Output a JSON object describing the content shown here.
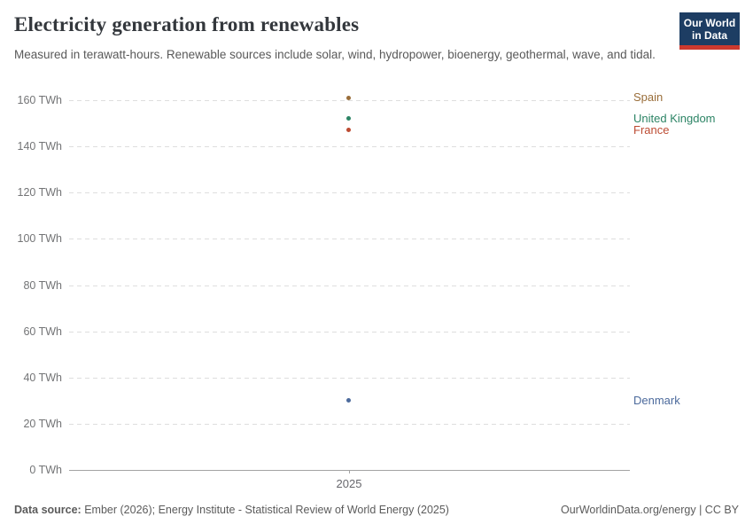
{
  "header": {
    "title": "Electricity generation from renewables",
    "subtitle": "Measured in terawatt-hours. Renewable sources include solar, wind, hydropower, bioenergy, geothermal, wave, and tidal.",
    "logo_line1": "Our World",
    "logo_line2": "in Data",
    "logo_bg_color": "#1d3d63",
    "logo_bar_color": "#cc392e"
  },
  "chart_data": {
    "type": "scatter",
    "title": "Electricity generation from renewables",
    "unit": "TWh",
    "x": [
      2025
    ],
    "x_tick_label": "2025",
    "ylim": [
      0,
      160
    ],
    "yticks": [
      0,
      20,
      40,
      60,
      80,
      100,
      120,
      140,
      160
    ],
    "ytick_suffix": " TWh",
    "grid": "dashed horizontal",
    "legend_position": "right entity labels",
    "series": [
      {
        "name": "Spain",
        "x": 2025,
        "value": 161,
        "color": "#996D39"
      },
      {
        "name": "United Kingdom",
        "x": 2025,
        "value": 152,
        "color": "#2C8465"
      },
      {
        "name": "France",
        "x": 2025,
        "value": 147,
        "color": "#BC4B32"
      },
      {
        "name": "Denmark",
        "x": 2025,
        "value": 30,
        "color": "#4C6A9C"
      }
    ]
  },
  "footer": {
    "source_label": "Data source:",
    "source_text": " Ember (2026); Energy Institute - Statistical Review of World Energy (2025)",
    "right_text": "OurWorldinData.org/energy | CC BY"
  }
}
